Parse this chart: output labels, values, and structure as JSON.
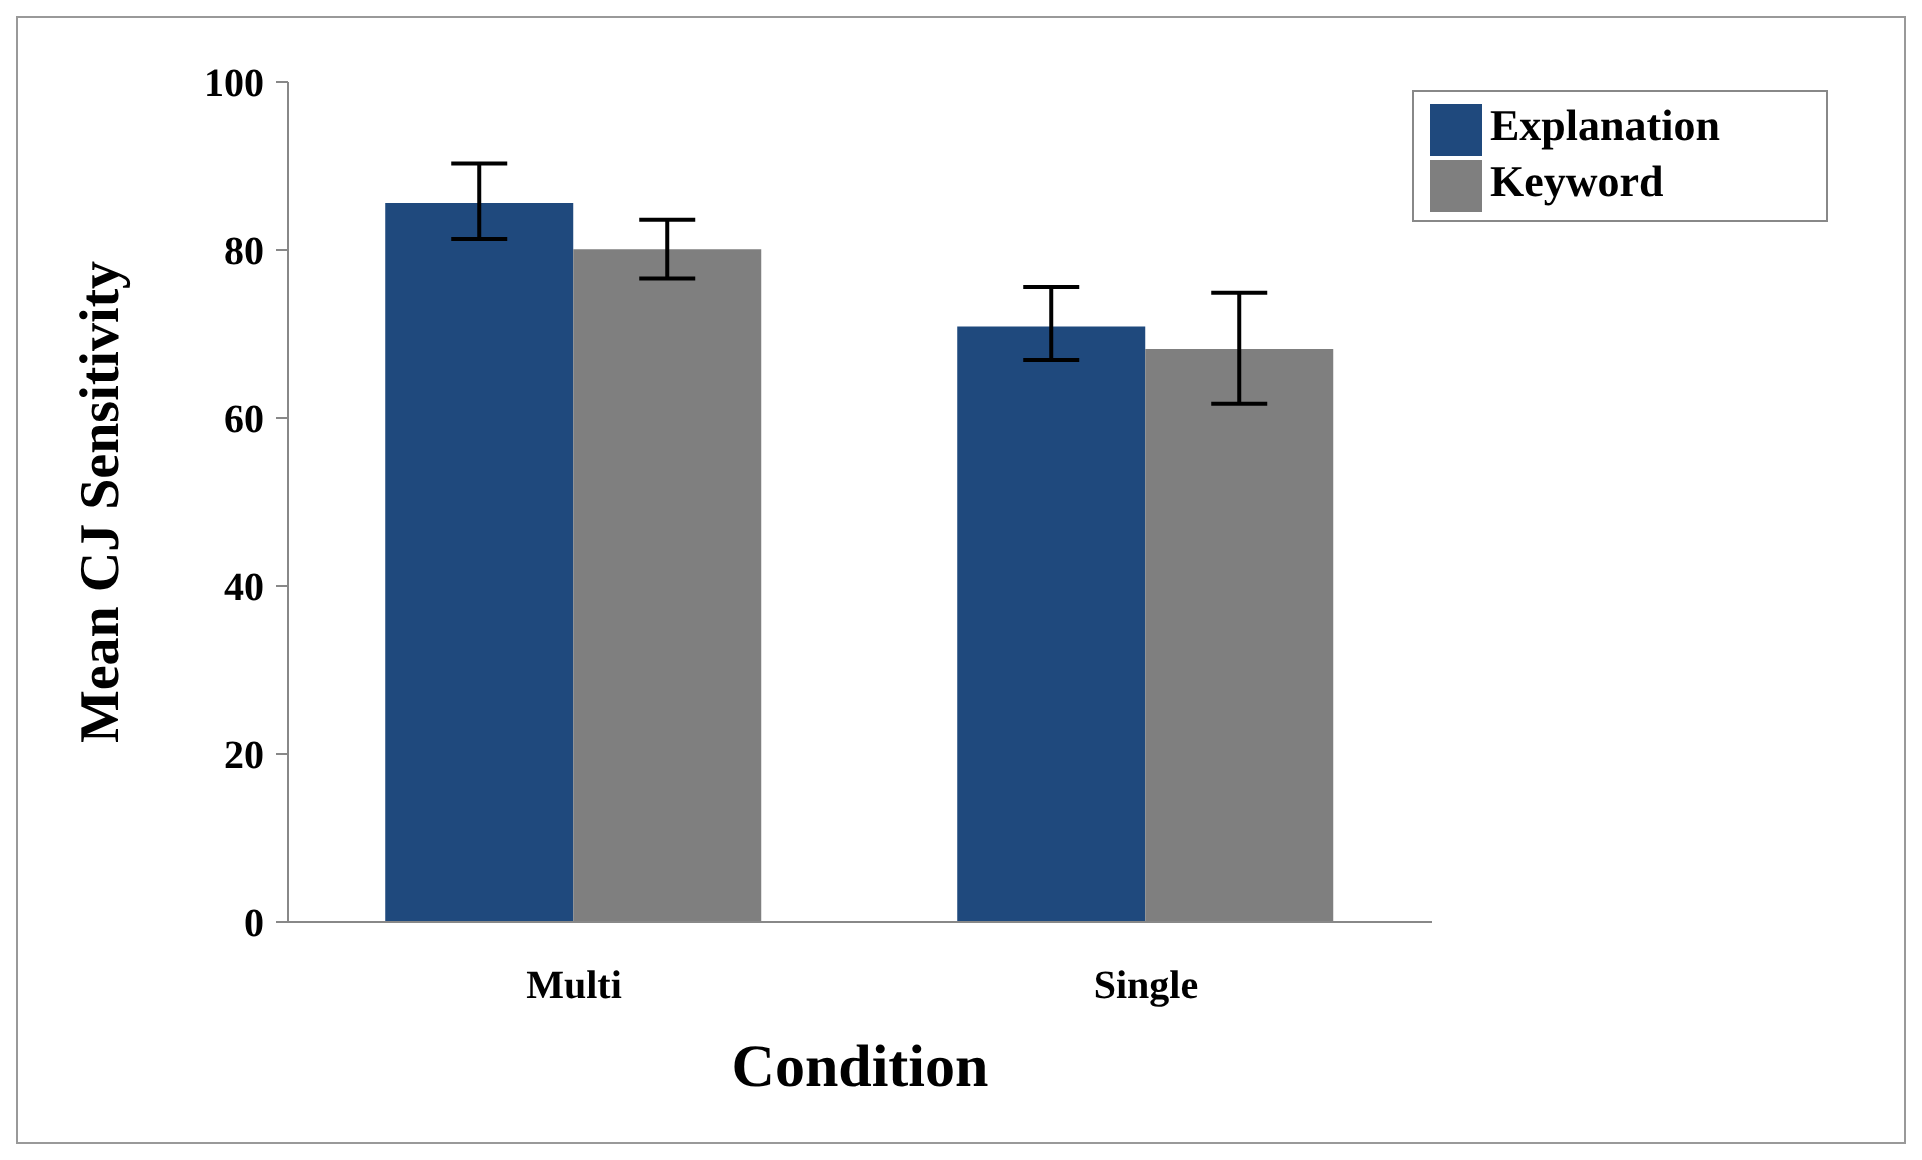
{
  "chart_data": {
    "type": "bar",
    "xlabel": "Condition",
    "ylabel": "Mean CJ Sensitivity",
    "categories": [
      "Multi",
      "Single"
    ],
    "series": [
      {
        "name": "Explanation",
        "color": "#1f497d",
        "values": [
          85.6,
          70.9
        ],
        "errors": [
          [
            81.3,
            90.3
          ],
          [
            66.9,
            75.6
          ]
        ]
      },
      {
        "name": "Keyword",
        "color": "#7f7f7f",
        "values": [
          80.1,
          68.2
        ],
        "errors": [
          [
            76.6,
            83.6
          ],
          [
            61.7,
            74.9
          ]
        ]
      }
    ],
    "ylim": [
      0,
      100
    ],
    "yticks": [
      0,
      20,
      40,
      60,
      80,
      100
    ],
    "grid": false,
    "legend": "top right"
  }
}
